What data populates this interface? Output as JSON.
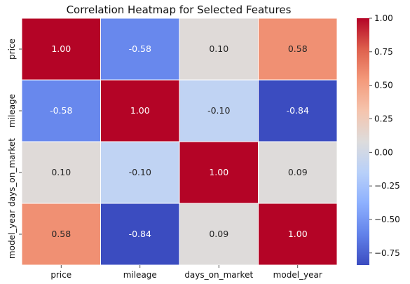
{
  "chart_data": {
    "type": "heatmap",
    "title": "Correlation Heatmap for Selected Features",
    "row_labels": [
      "price",
      "mileage",
      "days_on_market",
      "model_year"
    ],
    "col_labels": [
      "price",
      "mileage",
      "days_on_market",
      "model_year"
    ],
    "values": [
      [
        1.0,
        -0.58,
        0.1,
        0.58
      ],
      [
        -0.58,
        1.0,
        -0.1,
        -0.84
      ],
      [
        0.1,
        -0.1,
        1.0,
        0.09
      ],
      [
        0.58,
        -0.84,
        0.09,
        1.0
      ]
    ],
    "value_format": "0.00",
    "colormap": "coolwarm",
    "colorbar": {
      "min": -0.84,
      "max": 1.0,
      "ticks": [
        "1.00",
        "0.75",
        "0.50",
        "0.25",
        "0.00",
        "−0.25",
        "−0.50",
        "−0.75"
      ],
      "tick_values": [
        1.0,
        0.75,
        0.5,
        0.25,
        0.0,
        -0.25,
        -0.5,
        -0.75
      ]
    },
    "cell_border_color": "#ffffff"
  }
}
